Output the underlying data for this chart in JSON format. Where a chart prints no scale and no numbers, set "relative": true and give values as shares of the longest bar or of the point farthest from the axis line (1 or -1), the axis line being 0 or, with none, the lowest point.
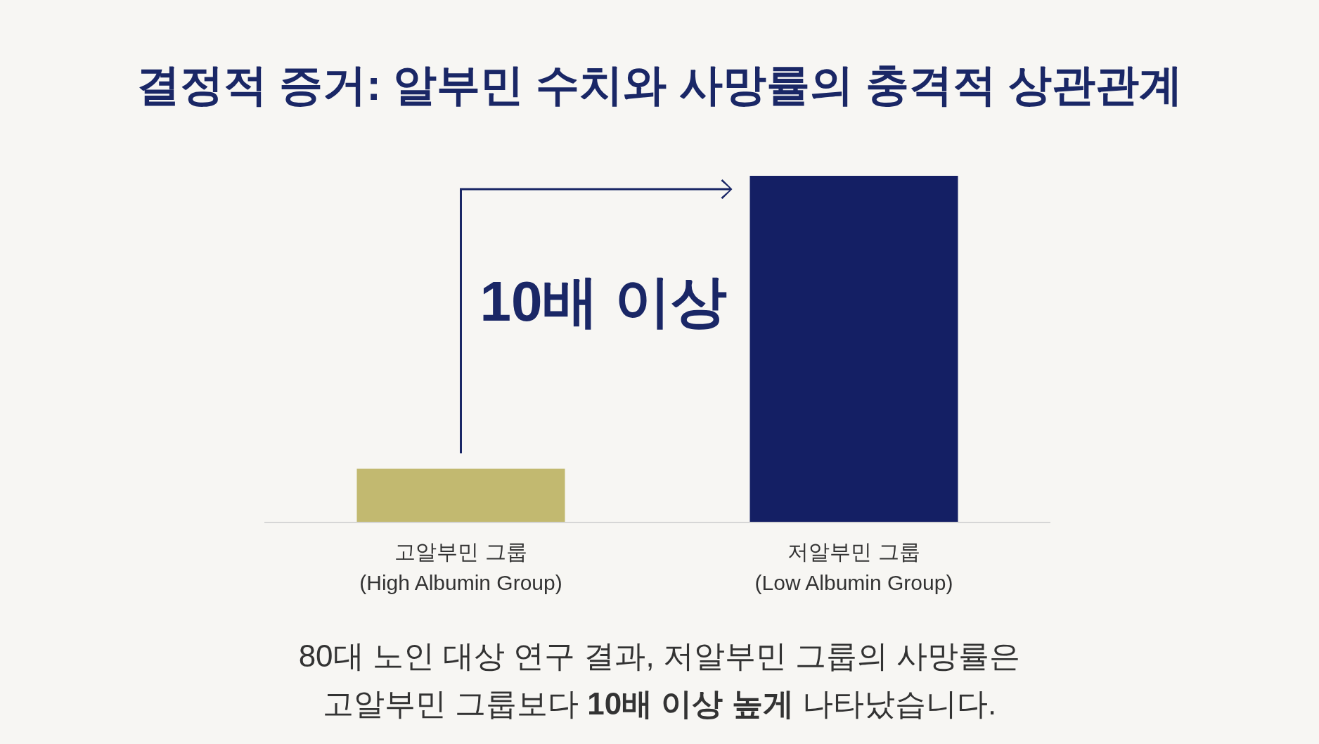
{
  "chart_data": {
    "type": "bar",
    "title": "결정적 증거: 알부민 수치와 사망률의 충격적 상관관계",
    "categories": [
      "고알부민 그룹\n(High Albumin Group)",
      "저알부민 그룹\n(Low Albumin Group)"
    ],
    "values": [
      0.155,
      1
    ],
    "colors": [
      "#c2b970",
      "#141f64"
    ],
    "relative": true,
    "annotations": [
      "10배 이상",
      "80대 노인 대상 연구 결과, 저알부민 그룹의 사망률은\n고알부민 그룹보다 **10배 이상 높게** 나타났습니다."
    ]
  }
}
